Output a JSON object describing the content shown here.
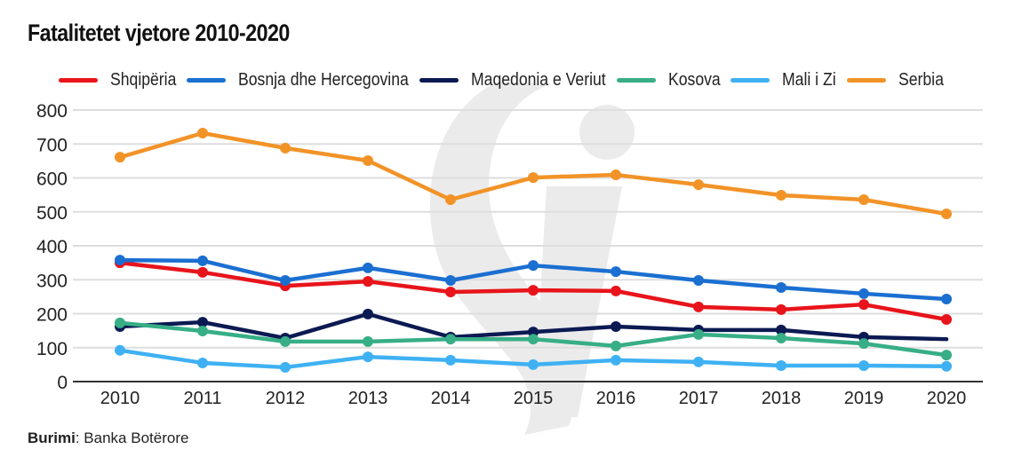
{
  "chart_data": {
    "type": "line",
    "title": "Fatalitetet vjetore 2010-2020",
    "xlabel": "",
    "ylabel": "",
    "ylim": [
      0,
      800
    ],
    "yticks": [
      "800",
      "700",
      "600",
      "500",
      "400",
      "300",
      "200",
      "100",
      "0"
    ],
    "ytick_values": [
      800,
      700,
      600,
      500,
      400,
      300,
      200,
      100,
      0
    ],
    "categories": [
      "2010",
      "2011",
      "2012",
      "2013",
      "2014",
      "2015",
      "2016",
      "2017",
      "2018",
      "2019",
      "2020"
    ],
    "grid": true,
    "legend_position": "top",
    "series": [
      {
        "name": "Shqipëria",
        "color": "#e8141b",
        "values": [
          350,
          322,
          282,
          295,
          264,
          269,
          267,
          220,
          212,
          227,
          183
        ]
      },
      {
        "name": "Bosnja dhe Hercegovina",
        "color": "#1b6fd1",
        "values": [
          358,
          356,
          298,
          335,
          298,
          342,
          324,
          298,
          277,
          259,
          243
        ]
      },
      {
        "name": "Maqedonia e Veriut",
        "color": "#0b1a52",
        "values": [
          162,
          175,
          128,
          199,
          131,
          146,
          162,
          152,
          152,
          131,
          125
        ],
        "last_marker": false
      },
      {
        "name": "Kosova",
        "color": "#37ae86",
        "values": [
          173,
          149,
          118,
          118,
          125,
          125,
          105,
          139,
          128,
          112,
          78
        ]
      },
      {
        "name": "Mali i Zi",
        "color": "#3fb1f3",
        "values": [
          92,
          55,
          42,
          73,
          63,
          50,
          63,
          58,
          47,
          47,
          45
        ]
      },
      {
        "name": "Serbia",
        "color": "#f29327",
        "values": [
          661,
          732,
          688,
          651,
          536,
          601,
          609,
          580,
          549,
          536,
          494
        ]
      }
    ]
  },
  "source": {
    "label": "Burimi",
    "separator": ":",
    "text": " Banka Botërore"
  },
  "colors": {
    "grid": "#dedede",
    "axis": "#333333",
    "watermark": "#e6e6e6",
    "text": "#222222"
  }
}
